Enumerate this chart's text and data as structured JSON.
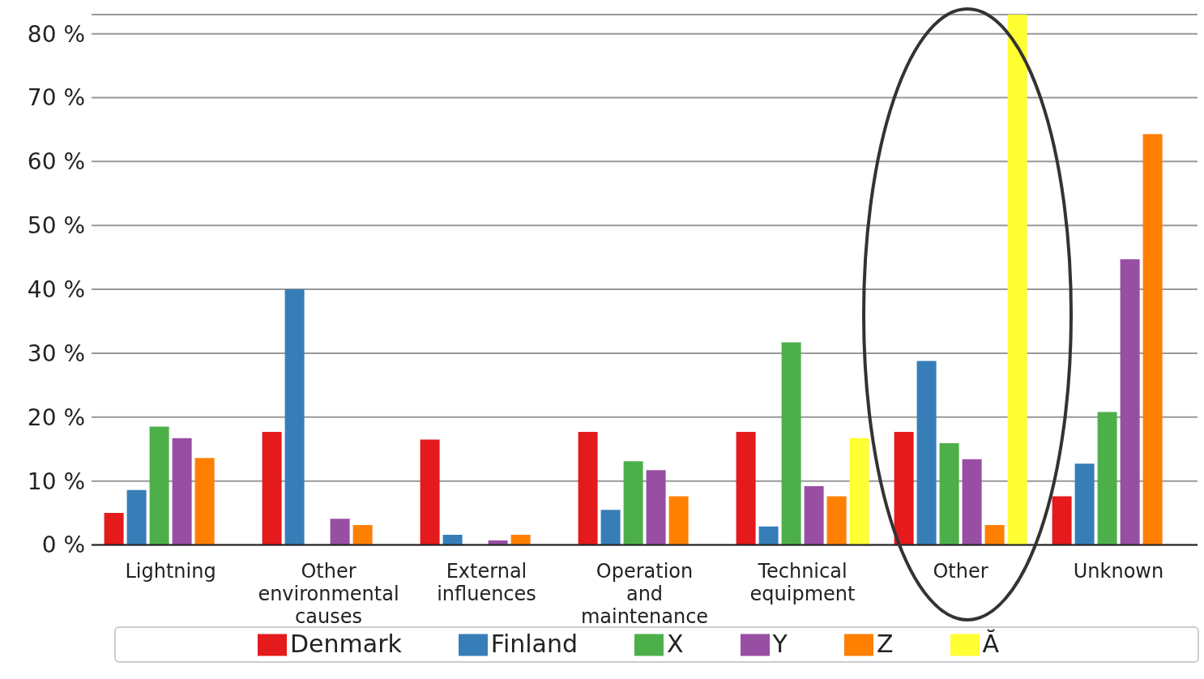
{
  "chart_data": {
    "type": "bar",
    "categories": [
      "Lightning",
      "Other environmental causes",
      "External influences",
      "Operation and maintenance",
      "Technical equipment",
      "Other",
      "Unknown"
    ],
    "series": [
      {
        "name": "Denmark",
        "color": "#e41a1c",
        "values": [
          5.0,
          17.7,
          16.5,
          17.7,
          17.7,
          17.7,
          7.6
        ]
      },
      {
        "name": "Finland",
        "color": "#377eb8",
        "values": [
          8.6,
          40.0,
          1.6,
          5.5,
          2.9,
          28.8,
          12.7
        ]
      },
      {
        "name": "X",
        "color": "#4daf4a",
        "values": [
          18.5,
          null,
          null,
          13.1,
          31.7,
          15.9,
          20.8
        ]
      },
      {
        "name": "Y",
        "color": "#984ea3",
        "values": [
          16.7,
          4.1,
          0.7,
          11.7,
          9.2,
          13.4,
          44.7
        ]
      },
      {
        "name": "Z",
        "color": "#ff7f00",
        "values": [
          13.6,
          3.1,
          1.6,
          7.6,
          7.6,
          3.1,
          64.3
        ]
      },
      {
        "name": "Ă",
        "color": "#ffff33",
        "values": [
          null,
          null,
          null,
          null,
          16.7,
          83,
          null
        ]
      }
    ],
    "ylim": [
      0,
      83
    ],
    "yticks": [
      {
        "value": 0,
        "label": "0 %"
      },
      {
        "value": 10,
        "label": "10 %"
      },
      {
        "value": 20,
        "label": "20 %"
      },
      {
        "value": 30,
        "label": "30 %"
      },
      {
        "value": 40,
        "label": "40 %"
      },
      {
        "value": 50,
        "label": "50 %"
      },
      {
        "value": 60,
        "label": "60 %"
      },
      {
        "value": 70,
        "label": "70 %"
      },
      {
        "value": 80,
        "label": "80 %"
      }
    ],
    "grid": "y",
    "legend": "bottom"
  }
}
